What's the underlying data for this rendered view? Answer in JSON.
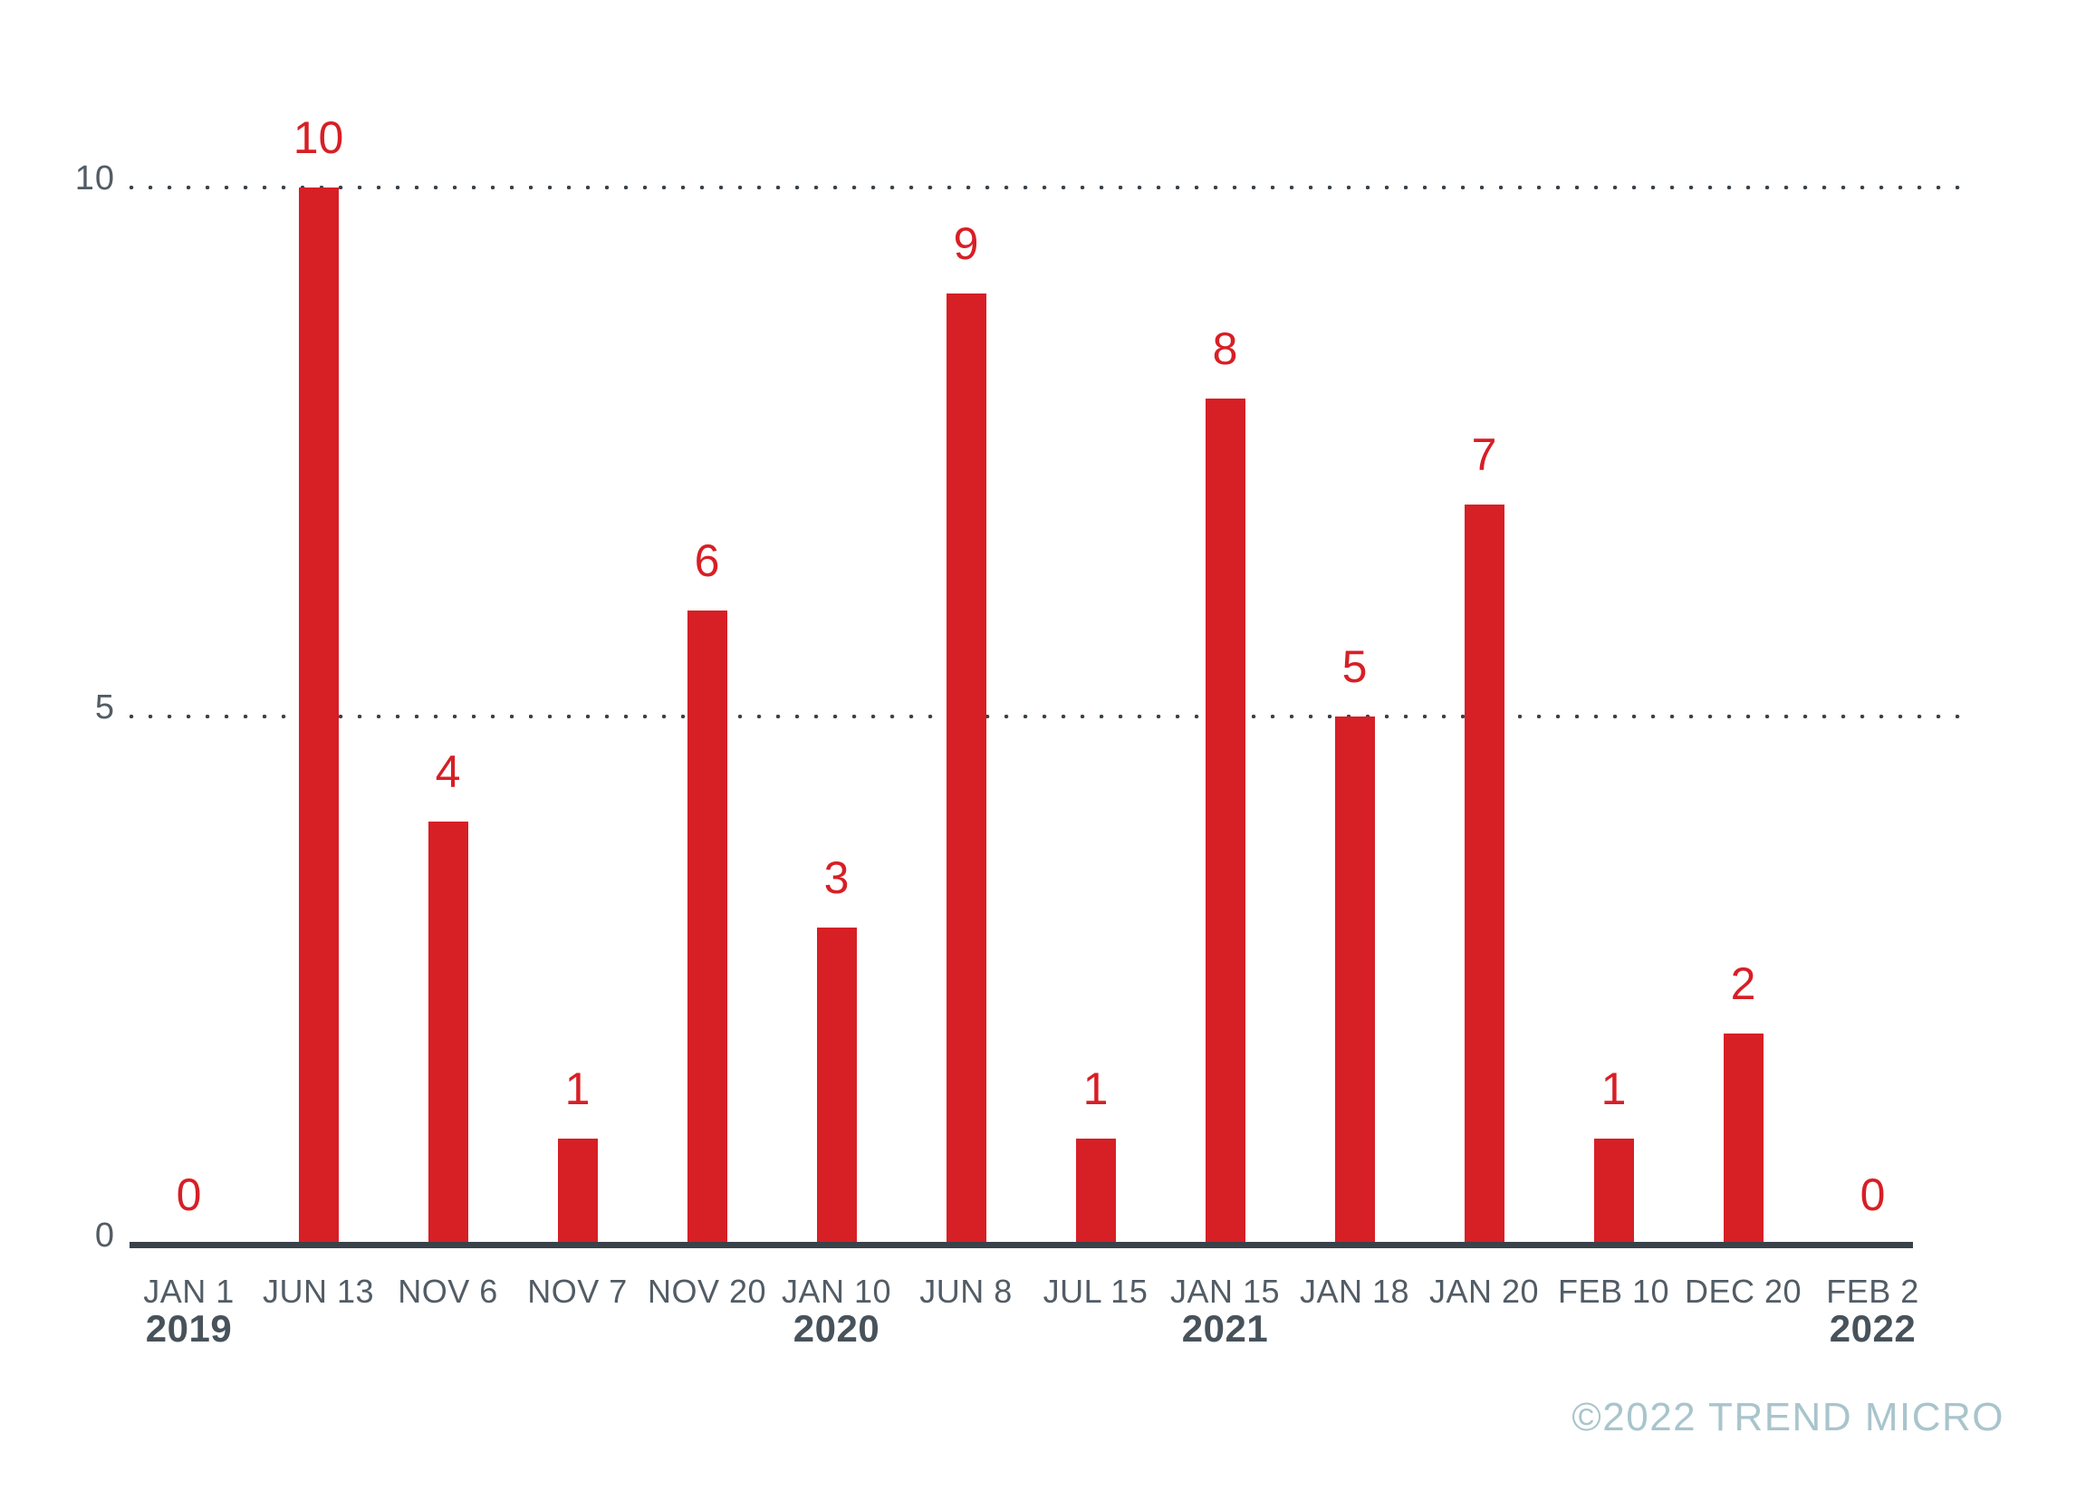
{
  "chart_data": {
    "type": "bar",
    "title": "",
    "xlabel": "",
    "ylabel": "",
    "categories": [
      "JAN 1",
      "JUN 13",
      "NOV 6",
      "NOV 7",
      "NOV 20",
      "JAN 10",
      "JUN 8",
      "JUL 15",
      "JAN 15",
      "JAN 18",
      "JAN 20",
      "FEB 10",
      "DEC 20",
      "FEB 2"
    ],
    "values": [
      0,
      10,
      4,
      1,
      6,
      3,
      9,
      1,
      8,
      5,
      7,
      1,
      2,
      0
    ],
    "year_labels": [
      {
        "index": 0,
        "year": "2019"
      },
      {
        "index": 5,
        "year": "2020"
      },
      {
        "index": 8,
        "year": "2021"
      },
      {
        "index": 13,
        "year": "2022"
      }
    ],
    "ylim": [
      0,
      10
    ],
    "yticks": [
      0,
      5,
      10
    ],
    "gridline_values": [
      5,
      10
    ],
    "grid_style": "dotted-horizontal",
    "legend": null,
    "bar_value_labels_shown": true
  },
  "colors": {
    "bar": "#d71f26",
    "value_label": "#d71f26",
    "axis_text": "#525c65",
    "year_text": "#47525b",
    "axis_line": "#39424a",
    "grid_dot": "#39424a",
    "watermark": "#a9c4cc",
    "background": "#ffffff"
  },
  "footer": {
    "copyright": "©2022 TREND MICRO"
  }
}
